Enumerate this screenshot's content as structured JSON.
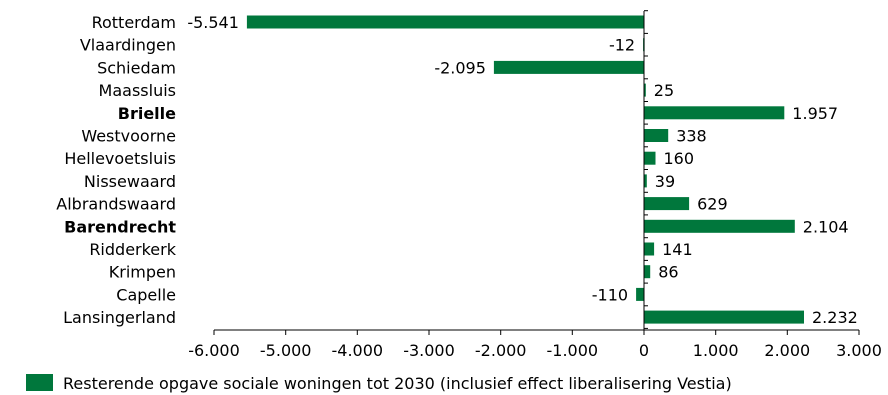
{
  "chart_data": {
    "type": "bar",
    "orientation": "horizontal",
    "categories": [
      "Rotterdam",
      "Vlaardingen",
      "Schiedam",
      "Maassluis",
      "Brielle",
      "Westvoorne",
      "Hellevoetsluis",
      "Nissewaard",
      "Albrandswaard",
      "Barendrecht",
      "Ridderkerk",
      "Krimpen",
      "Capelle",
      "Lansingerland"
    ],
    "bold_categories": [
      "Brielle",
      "Barendrecht"
    ],
    "series": [
      {
        "name": "Resterende opgave sociale woningen tot 2030 (inclusief effect liberalisering Vestia)",
        "color": "#00773c",
        "values": [
          -5541,
          -12,
          -2095,
          25,
          1957,
          338,
          160,
          39,
          629,
          2104,
          141,
          86,
          -110,
          2232
        ],
        "labels": [
          "-5.541",
          "-12",
          "-2.095",
          "25",
          "1.957",
          "338",
          "160",
          "39",
          "629",
          "2.104",
          "141",
          "86",
          "-110",
          "2.232"
        ]
      }
    ],
    "xlim": [
      -6000,
      3000
    ],
    "xticks": [
      -6000,
      -5000,
      -4000,
      -3000,
      -2000,
      -1000,
      0,
      1000,
      2000,
      3000
    ],
    "xtick_labels": [
      "-6.000",
      "-5.000",
      "-4.000",
      "-3.000",
      "-2.000",
      "-1.000",
      "0",
      "1.000",
      "2.000",
      "3.000"
    ],
    "grid": false,
    "legend_position": "bottom"
  }
}
